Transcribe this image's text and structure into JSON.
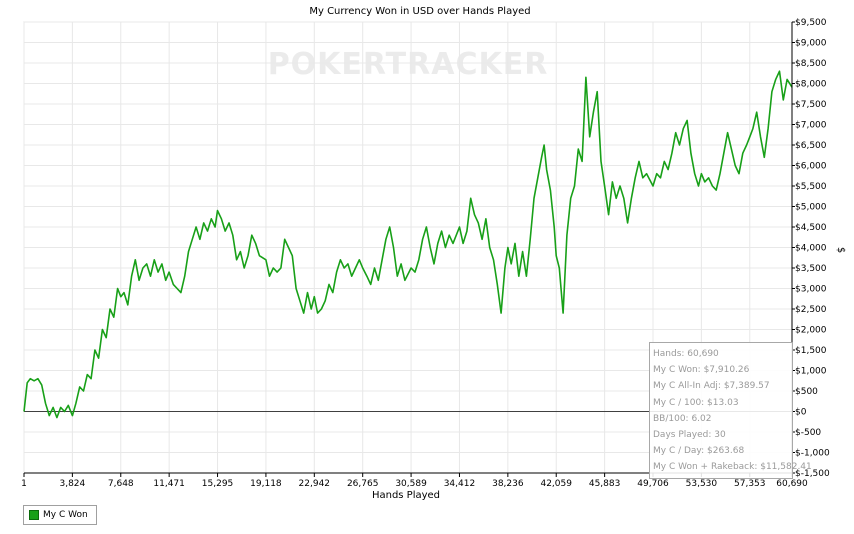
{
  "chart_data": {
    "type": "line",
    "title": "My Currency Won in USD over Hands Played",
    "xlabel": "Hands Played",
    "ylabel": "$",
    "xlim": [
      1,
      60690
    ],
    "ylim": [
      -1500,
      9500
    ],
    "x_ticks": [
      1,
      3824,
      7648,
      11471,
      15295,
      19118,
      22942,
      26765,
      30589,
      34412,
      38236,
      42059,
      45883,
      49706,
      53530,
      57353,
      60690
    ],
    "x_tick_labels": [
      "1",
      "3,824",
      "7,648",
      "11,471",
      "15,295",
      "19,118",
      "22,942",
      "26,765",
      "30,589",
      "34,412",
      "38,236",
      "42,059",
      "45,883",
      "49,706",
      "53,530",
      "57,353",
      "60,690"
    ],
    "y_ticks": [
      9500,
      9000,
      8500,
      8000,
      7500,
      7000,
      6500,
      6000,
      5500,
      5000,
      4500,
      4000,
      3500,
      3000,
      2500,
      2000,
      1500,
      1000,
      500,
      0,
      -500,
      -1000,
      -1500
    ],
    "y_tick_labels": [
      "$9,500",
      "$9,000",
      "$8,500",
      "$8,000",
      "$7,500",
      "$7,000",
      "$6,500",
      "$6,000",
      "$5,500",
      "$5,000",
      "$4,500",
      "$4,000",
      "$3,500",
      "$3,000",
      "$2,500",
      "$2,000",
      "$1,500",
      "$1,000",
      "$500",
      "$0",
      "$-500",
      "$-1,000",
      "$-1,500"
    ],
    "grid": true,
    "legend_position": "bottom-left",
    "series": [
      {
        "name": "My C Won",
        "color": "#18a018",
        "points": [
          [
            1,
            0
          ],
          [
            250,
            700
          ],
          [
            500,
            800
          ],
          [
            800,
            750
          ],
          [
            1100,
            800
          ],
          [
            1400,
            650
          ],
          [
            1700,
            200
          ],
          [
            2000,
            -100
          ],
          [
            2300,
            100
          ],
          [
            2600,
            -150
          ],
          [
            2900,
            100
          ],
          [
            3200,
            0
          ],
          [
            3500,
            150
          ],
          [
            3824,
            -100
          ],
          [
            4100,
            200
          ],
          [
            4400,
            600
          ],
          [
            4700,
            500
          ],
          [
            5000,
            900
          ],
          [
            5300,
            800
          ],
          [
            5600,
            1500
          ],
          [
            5900,
            1300
          ],
          [
            6200,
            2000
          ],
          [
            6500,
            1800
          ],
          [
            6800,
            2500
          ],
          [
            7100,
            2300
          ],
          [
            7400,
            3000
          ],
          [
            7648,
            2800
          ],
          [
            7900,
            2900
          ],
          [
            8200,
            2600
          ],
          [
            8500,
            3300
          ],
          [
            8800,
            3700
          ],
          [
            9100,
            3200
          ],
          [
            9400,
            3500
          ],
          [
            9700,
            3600
          ],
          [
            10000,
            3300
          ],
          [
            10300,
            3700
          ],
          [
            10600,
            3400
          ],
          [
            10900,
            3600
          ],
          [
            11200,
            3200
          ],
          [
            11471,
            3400
          ],
          [
            11800,
            3100
          ],
          [
            12100,
            3000
          ],
          [
            12400,
            2900
          ],
          [
            12700,
            3300
          ],
          [
            13000,
            3900
          ],
          [
            13300,
            4200
          ],
          [
            13600,
            4500
          ],
          [
            13900,
            4200
          ],
          [
            14200,
            4600
          ],
          [
            14500,
            4400
          ],
          [
            14800,
            4700
          ],
          [
            15100,
            4500
          ],
          [
            15295,
            4900
          ],
          [
            15600,
            4700
          ],
          [
            15900,
            4400
          ],
          [
            16200,
            4600
          ],
          [
            16500,
            4300
          ],
          [
            16800,
            3700
          ],
          [
            17100,
            3900
          ],
          [
            17400,
            3500
          ],
          [
            17700,
            3800
          ],
          [
            18000,
            4300
          ],
          [
            18300,
            4100
          ],
          [
            18600,
            3800
          ],
          [
            19118,
            3700
          ],
          [
            19400,
            3300
          ],
          [
            19700,
            3500
          ],
          [
            20000,
            3400
          ],
          [
            20300,
            3500
          ],
          [
            20600,
            4200
          ],
          [
            20900,
            4000
          ],
          [
            21200,
            3800
          ],
          [
            21500,
            3000
          ],
          [
            21800,
            2700
          ],
          [
            22100,
            2400
          ],
          [
            22400,
            2900
          ],
          [
            22700,
            2500
          ],
          [
            22942,
            2800
          ],
          [
            23200,
            2400
          ],
          [
            23500,
            2500
          ],
          [
            23800,
            2700
          ],
          [
            24100,
            3100
          ],
          [
            24400,
            2900
          ],
          [
            24700,
            3400
          ],
          [
            25000,
            3700
          ],
          [
            25300,
            3500
          ],
          [
            25600,
            3600
          ],
          [
            25900,
            3300
          ],
          [
            26200,
            3500
          ],
          [
            26500,
            3700
          ],
          [
            26765,
            3500
          ],
          [
            27100,
            3300
          ],
          [
            27400,
            3100
          ],
          [
            27700,
            3500
          ],
          [
            28000,
            3200
          ],
          [
            28300,
            3700
          ],
          [
            28600,
            4200
          ],
          [
            28900,
            4500
          ],
          [
            29200,
            4000
          ],
          [
            29500,
            3300
          ],
          [
            29800,
            3600
          ],
          [
            30100,
            3200
          ],
          [
            30589,
            3500
          ],
          [
            30900,
            3400
          ],
          [
            31200,
            3700
          ],
          [
            31500,
            4200
          ],
          [
            31800,
            4500
          ],
          [
            32100,
            4000
          ],
          [
            32400,
            3600
          ],
          [
            32700,
            4100
          ],
          [
            33000,
            4400
          ],
          [
            33300,
            4000
          ],
          [
            33600,
            4300
          ],
          [
            33900,
            4100
          ],
          [
            34412,
            4500
          ],
          [
            34700,
            4100
          ],
          [
            35000,
            4400
          ],
          [
            35300,
            5200
          ],
          [
            35600,
            4800
          ],
          [
            35900,
            4600
          ],
          [
            36200,
            4200
          ],
          [
            36500,
            4700
          ],
          [
            36800,
            4000
          ],
          [
            37100,
            3700
          ],
          [
            37400,
            3100
          ],
          [
            37700,
            2400
          ],
          [
            38000,
            3500
          ],
          [
            38236,
            4000
          ],
          [
            38500,
            3600
          ],
          [
            38800,
            4100
          ],
          [
            39100,
            3300
          ],
          [
            39400,
            3900
          ],
          [
            39700,
            3300
          ],
          [
            40000,
            4200
          ],
          [
            40300,
            5200
          ],
          [
            40600,
            5700
          ],
          [
            40900,
            6200
          ],
          [
            41100,
            6500
          ],
          [
            41300,
            5900
          ],
          [
            41600,
            5400
          ],
          [
            41900,
            4500
          ],
          [
            42059,
            3800
          ],
          [
            42300,
            3500
          ],
          [
            42600,
            2400
          ],
          [
            42900,
            4300
          ],
          [
            43200,
            5200
          ],
          [
            43500,
            5500
          ],
          [
            43800,
            6400
          ],
          [
            44100,
            6100
          ],
          [
            44400,
            8150
          ],
          [
            44700,
            6700
          ],
          [
            45000,
            7300
          ],
          [
            45300,
            7800
          ],
          [
            45600,
            6100
          ],
          [
            45883,
            5500
          ],
          [
            46200,
            4800
          ],
          [
            46500,
            5600
          ],
          [
            46800,
            5200
          ],
          [
            47100,
            5500
          ],
          [
            47400,
            5200
          ],
          [
            47700,
            4600
          ],
          [
            48000,
            5200
          ],
          [
            48300,
            5700
          ],
          [
            48600,
            6100
          ],
          [
            48900,
            5700
          ],
          [
            49200,
            5800
          ],
          [
            49706,
            5500
          ],
          [
            50000,
            5800
          ],
          [
            50300,
            5700
          ],
          [
            50600,
            6100
          ],
          [
            50900,
            5900
          ],
          [
            51200,
            6300
          ],
          [
            51500,
            6800
          ],
          [
            51800,
            6500
          ],
          [
            52100,
            6900
          ],
          [
            52400,
            7100
          ],
          [
            52700,
            6300
          ],
          [
            53000,
            5800
          ],
          [
            53300,
            5500
          ],
          [
            53530,
            5800
          ],
          [
            53800,
            5600
          ],
          [
            54100,
            5700
          ],
          [
            54400,
            5500
          ],
          [
            54700,
            5400
          ],
          [
            55000,
            5800
          ],
          [
            55300,
            6300
          ],
          [
            55600,
            6800
          ],
          [
            55900,
            6400
          ],
          [
            56200,
            6000
          ],
          [
            56500,
            5800
          ],
          [
            56800,
            6300
          ],
          [
            57100,
            6500
          ],
          [
            57353,
            6700
          ],
          [
            57600,
            6900
          ],
          [
            57900,
            7300
          ],
          [
            58200,
            6700
          ],
          [
            58500,
            6200
          ],
          [
            58800,
            6900
          ],
          [
            59100,
            7800
          ],
          [
            59400,
            8100
          ],
          [
            59700,
            8300
          ],
          [
            60000,
            7600
          ],
          [
            60300,
            8100
          ],
          [
            60690,
            7910
          ]
        ]
      }
    ],
    "baseline": 0,
    "watermark": "POKERTRACKER",
    "stats": [
      "Hands: 60,690",
      "My C Won: $7,910.26",
      "My C All-In Adj: $7,389.57",
      "My C / 100: $13.03",
      "BB/100: 6.02",
      "Days Played: 30",
      "My C / Day: $263.68",
      "My C Won + Rakeback: $11,582.41"
    ]
  }
}
